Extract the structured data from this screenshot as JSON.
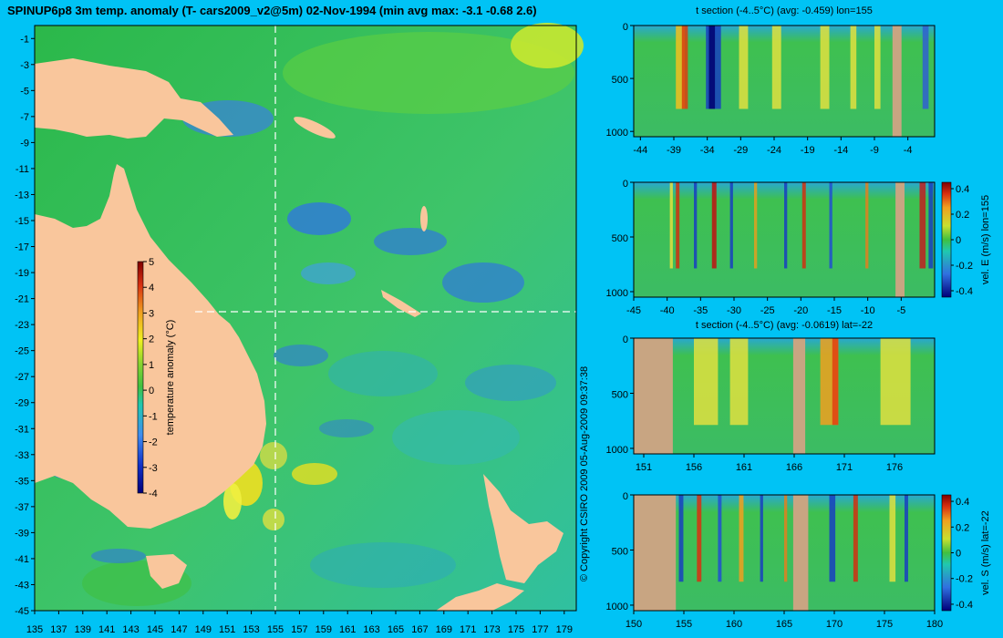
{
  "title": "SPINUP6p8 3m temp. anomaly (T- cars2009_v2@5m) 02-Nov-1994 (min avg max: -3.1 -0.68 2.6)",
  "copyright": "© Copyright CSIRO 2009   05-Aug-2009 09:37:38",
  "colors": {
    "background": "#00c3f5",
    "land": "#f9c69c",
    "section_land": "#c8a582",
    "ocean_base": "#3fc35a",
    "cold": "#2a7ad8",
    "warm": "#f5e020",
    "hot": "#d42a10"
  },
  "chart_data": [
    {
      "type": "heatmap",
      "id": "map",
      "title": "SPINUP6p8 3m temp. anomaly (T- cars2009_v2@5m) 02-Nov-1994 (min avg max: -3.1 -0.68 2.6)",
      "x_ticks": [
        "135",
        "137",
        "139",
        "141",
        "143",
        "145",
        "147",
        "149",
        "151",
        "153",
        "155",
        "157",
        "159",
        "161",
        "163",
        "165",
        "167",
        "169",
        "171",
        "173",
        "175",
        "177",
        "179"
      ],
      "y_ticks": [
        "-1",
        "-3",
        "-5",
        "-7",
        "-9",
        "-11",
        "-13",
        "-15",
        "-17",
        "-19",
        "-21",
        "-23",
        "-25",
        "-27",
        "-29",
        "-31",
        "-33",
        "-35",
        "-37",
        "-39",
        "-41",
        "-43",
        "-45"
      ],
      "xlim": [
        135,
        180
      ],
      "ylim": [
        -45,
        0
      ],
      "section_lon": 155,
      "section_lat": -22,
      "colorbar": {
        "label": "temperature anomaly (°C)",
        "ticks": [
          "5",
          "4",
          "3",
          "2",
          "1",
          "0",
          "-1",
          "-2",
          "-3",
          "-4"
        ],
        "range": [
          -4,
          5
        ]
      }
    },
    {
      "type": "heatmap",
      "id": "sec1",
      "title": "t section (-4..5°C) (avg: -0.459) lon=155",
      "x_ticks": [
        "-44",
        "-39",
        "-34",
        "-29",
        "-24",
        "-19",
        "-14",
        "-9",
        "-4"
      ],
      "y_ticks": [
        "0",
        "500",
        "1000"
      ],
      "xlim": [
        -45,
        0
      ],
      "ylim": [
        1050,
        0
      ]
    },
    {
      "type": "heatmap",
      "id": "sec2",
      "title": "",
      "x_ticks": [
        "-45",
        "-40",
        "-35",
        "-30",
        "-25",
        "-20",
        "-15",
        "-10",
        "-5"
      ],
      "y_ticks": [
        "0",
        "500",
        "1000"
      ],
      "xlim": [
        -45,
        0
      ],
      "ylim": [
        1050,
        0
      ],
      "colorbar": {
        "label": "vel. E (m/s) lon=155",
        "ticks": [
          "0.4",
          "0.2",
          "0",
          "-0.2",
          "-0.4"
        ],
        "range": [
          -0.45,
          0.45
        ]
      }
    },
    {
      "type": "heatmap",
      "id": "sec3",
      "title": "t section (-4..5°C) (avg: -0.0619) lat=-22",
      "x_ticks": [
        "151",
        "156",
        "161",
        "166",
        "171",
        "176"
      ],
      "y_ticks": [
        "0",
        "500",
        "1000"
      ],
      "xlim": [
        150,
        180
      ],
      "ylim": [
        1050,
        0
      ]
    },
    {
      "type": "heatmap",
      "id": "sec4",
      "title": "",
      "x_ticks": [
        "150",
        "155",
        "160",
        "165",
        "170",
        "175",
        "180"
      ],
      "y_ticks": [
        "0",
        "500",
        "1000"
      ],
      "xlim": [
        150,
        180
      ],
      "ylim": [
        1050,
        0
      ],
      "colorbar": {
        "label": "vel. S (m/s) lat=-22",
        "ticks": [
          "0.4",
          "0.2",
          "0",
          "-0.2",
          "-0.4"
        ],
        "range": [
          -0.45,
          0.45
        ]
      }
    }
  ]
}
